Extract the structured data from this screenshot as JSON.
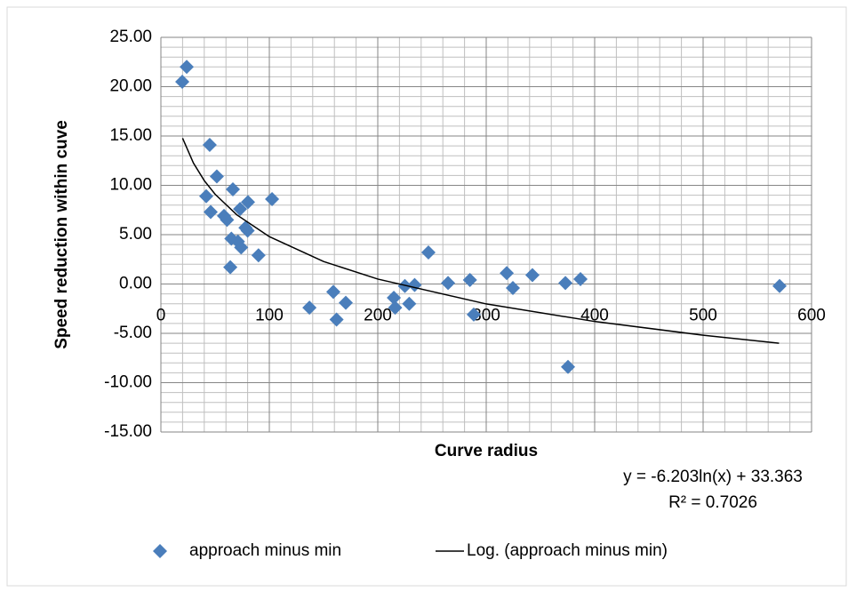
{
  "chart_data": {
    "type": "scatter",
    "x_label": "Curve radius",
    "y_label": "Speed reduction within cuve",
    "xlim": [
      0,
      600
    ],
    "xticks": [
      0,
      100,
      200,
      300,
      400,
      500,
      600
    ],
    "ylim": [
      -15,
      25
    ],
    "yticks": [
      {
        "value": -15,
        "label": "-15.00"
      },
      {
        "value": -10,
        "label": "-10.00"
      },
      {
        "value": -5,
        "label": "-5.00"
      },
      {
        "value": 0,
        "label": "0.00"
      },
      {
        "value": 5,
        "label": "5.00"
      },
      {
        "value": 10,
        "label": "10.00"
      },
      {
        "value": 15,
        "label": "15.00"
      },
      {
        "value": 20,
        "label": "20.00"
      },
      {
        "value": 25,
        "label": "25.00"
      }
    ],
    "grid": true,
    "minor_grid": true,
    "legend": "bottom",
    "series": [
      {
        "name": "approach minus min",
        "color": "#4a7ebb",
        "marker": "diamond",
        "x": [
          19.7,
          23.8,
          45,
          51.6,
          41.8,
          45.9,
          66.4,
          80.3,
          102.5,
          58.2,
          61,
          73,
          78,
          65,
          71,
          74,
          80,
          64,
          90,
          137,
          159,
          162,
          170.5,
          214.8,
          216,
          225,
          229,
          234,
          246.7,
          264.8,
          285,
          288.5,
          318.9,
          324.6,
          342.6,
          373,
          375.4,
          386.9,
          570.5
        ],
        "y": [
          20.5,
          22.0,
          14.1,
          10.9,
          8.9,
          7.3,
          9.6,
          8.3,
          8.6,
          6.9,
          6.5,
          7.6,
          5.7,
          4.6,
          4.3,
          3.7,
          5.4,
          1.7,
          2.9,
          -2.4,
          -0.8,
          -3.6,
          -1.9,
          -1.4,
          -2.4,
          -0.2,
          -2.0,
          -0.1,
          3.2,
          0.1,
          0.4,
          -3.1,
          1.1,
          -0.4,
          0.9,
          0.1,
          -8.4,
          0.5,
          -0.2
        ]
      },
      {
        "name": "Log. (approach minus min)",
        "color": "#000000",
        "marker": "line",
        "x": [
          20,
          30,
          40,
          50,
          70,
          100,
          150,
          200,
          300,
          400,
          500,
          570
        ],
        "y": [
          14.78,
          12.26,
          10.48,
          9.1,
          7.01,
          4.8,
          2.28,
          0.5,
          -2.02,
          -3.8,
          -5.19,
          -6.0
        ]
      }
    ],
    "trendline_equation": "y = -6.203ln(x) + 33.363",
    "trendline_r2": "R² = 0.7026"
  }
}
